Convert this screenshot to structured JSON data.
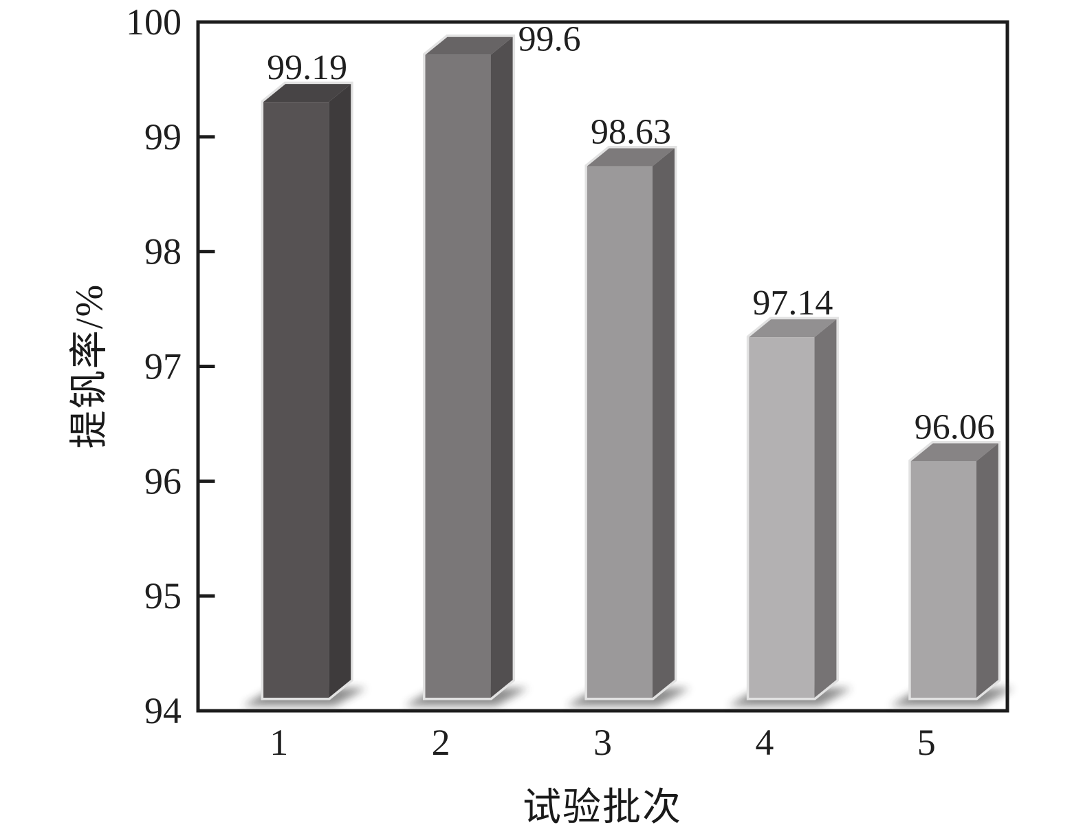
{
  "chart_data": {
    "type": "bar",
    "title": "",
    "xlabel": "试验批次",
    "ylabel": "提钒率/%",
    "categories": [
      "1",
      "2",
      "3",
      "4",
      "5"
    ],
    "values": [
      99.19,
      99.6,
      98.63,
      97.14,
      96.06
    ],
    "value_labels": [
      "99.19",
      "99.6",
      "98.63",
      "97.14",
      "96.06"
    ],
    "ylim": [
      94,
      100
    ],
    "yticks": [
      94,
      95,
      96,
      97,
      98,
      99,
      100
    ],
    "grid": false,
    "legend": null,
    "style": "3d-column",
    "axis_color": "#1c1c1c",
    "text_color": "#1f1f1f",
    "outline_color": "#e2e2e2",
    "background": "#ffffff",
    "bar_colors": [
      {
        "front": "#565253",
        "side": "#3e3b3c",
        "top": "#474445"
      },
      {
        "front": "#7a7778",
        "side": "#524f50",
        "top": "#676465"
      },
      {
        "front": "#9b999a",
        "side": "#636061",
        "top": "#7d7a7b"
      },
      {
        "front": "#b3b1b2",
        "side": "#767374",
        "top": "#929091"
      },
      {
        "front": "#a8a6a7",
        "side": "#6c696a",
        "top": "#878485"
      }
    ]
  }
}
